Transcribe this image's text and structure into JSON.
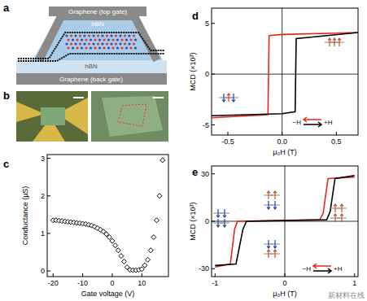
{
  "panels": {
    "a": {
      "label": "a",
      "layers": [
        "Graphene (top gate)",
        "hBN",
        "hBN",
        "Graphene (back gate)"
      ]
    },
    "b": {
      "label": "b"
    }
  },
  "watermark": "新材料在线",
  "chart_data": [
    {
      "type": "scatter",
      "title": "c",
      "x_label": "Gate voltage (V)",
      "y_label": "Conductance (µS)",
      "xlim": [
        -22,
        19
      ],
      "ylim": [
        -0.15,
        3.1
      ],
      "xticks": [
        -20,
        -10,
        0,
        10
      ],
      "yticks": [
        0,
        1,
        2,
        3
      ],
      "series": [
        {
          "name": "Conductance",
          "color": "#000000",
          "marker": "diamond",
          "x": [
            -20,
            -19,
            -18,
            -17,
            -16,
            -15,
            -14,
            -13,
            -12,
            -11,
            -10,
            -9,
            -8,
            -7,
            -6,
            -5,
            -4,
            -3,
            -2,
            -1,
            0,
            1,
            2,
            3,
            4,
            5,
            6,
            7,
            8,
            9,
            10,
            11,
            12,
            13,
            14,
            15,
            16,
            17
          ],
          "values": [
            1.35,
            1.35,
            1.34,
            1.33,
            1.32,
            1.31,
            1.3,
            1.29,
            1.28,
            1.27,
            1.26,
            1.25,
            1.23,
            1.21,
            1.18,
            1.14,
            1.1,
            1.05,
            0.98,
            0.9,
            0.8,
            0.68,
            0.55,
            0.4,
            0.25,
            0.1,
            0.03,
            0.02,
            0.02,
            0.03,
            0.05,
            0.15,
            0.3,
            0.55,
            0.9,
            1.35,
            2.0,
            2.95
          ]
        }
      ]
    },
    {
      "type": "line",
      "title": "d",
      "x_label": "μ₀H (T)",
      "y_label": "MCD (×10³)",
      "xlim": [
        -0.65,
        0.7
      ],
      "ylim": [
        -6,
        6.5
      ],
      "xticks": [
        {
          "value": -0.5,
          "label": "-0.5"
        },
        {
          "value": 0,
          "label": "0.0"
        },
        {
          "value": 0.5,
          "label": "0.5"
        }
      ],
      "yticks": [
        -5,
        0,
        5
      ],
      "annotations": [
        "−H",
        "+H"
      ],
      "series": [
        {
          "name": "−H",
          "color": "#e8281e",
          "x": [
            -0.65,
            -0.13,
            -0.12,
            0.0,
            0.7
          ],
          "values": [
            -4.3,
            -4.0,
            3.8,
            3.9,
            4.1
          ]
        },
        {
          "name": "+H",
          "color": "#000000",
          "x": [
            -0.65,
            0.0,
            0.12,
            0.13,
            0.7
          ],
          "values": [
            -4.1,
            -3.9,
            -3.7,
            3.5,
            4.1
          ]
        }
      ]
    },
    {
      "type": "line",
      "title": "e",
      "x_label": "μ₀H (T)",
      "y_label": "MCD (×10³)",
      "xlim": [
        -1.05,
        1.05
      ],
      "ylim": [
        -35,
        35
      ],
      "xticks": [
        -1,
        0,
        1
      ],
      "yticks": [
        -30,
        0,
        30
      ],
      "annotations": [
        "−H",
        "+H"
      ],
      "series": [
        {
          "name": "−H",
          "color": "#e8281e",
          "x": [
            -1,
            -0.78,
            -0.72,
            -0.68,
            0.5,
            0.55,
            0.62,
            1
          ],
          "values": [
            -29,
            -27,
            -5,
            0,
            1,
            5,
            27,
            28
          ]
        },
        {
          "name": "+H",
          "color": "#000000",
          "x": [
            -1,
            -0.7,
            -0.6,
            -0.55,
            0.6,
            0.65,
            0.72,
            1
          ],
          "values": [
            -28,
            -27,
            -5,
            0,
            1,
            6,
            27,
            29
          ]
        }
      ]
    }
  ]
}
